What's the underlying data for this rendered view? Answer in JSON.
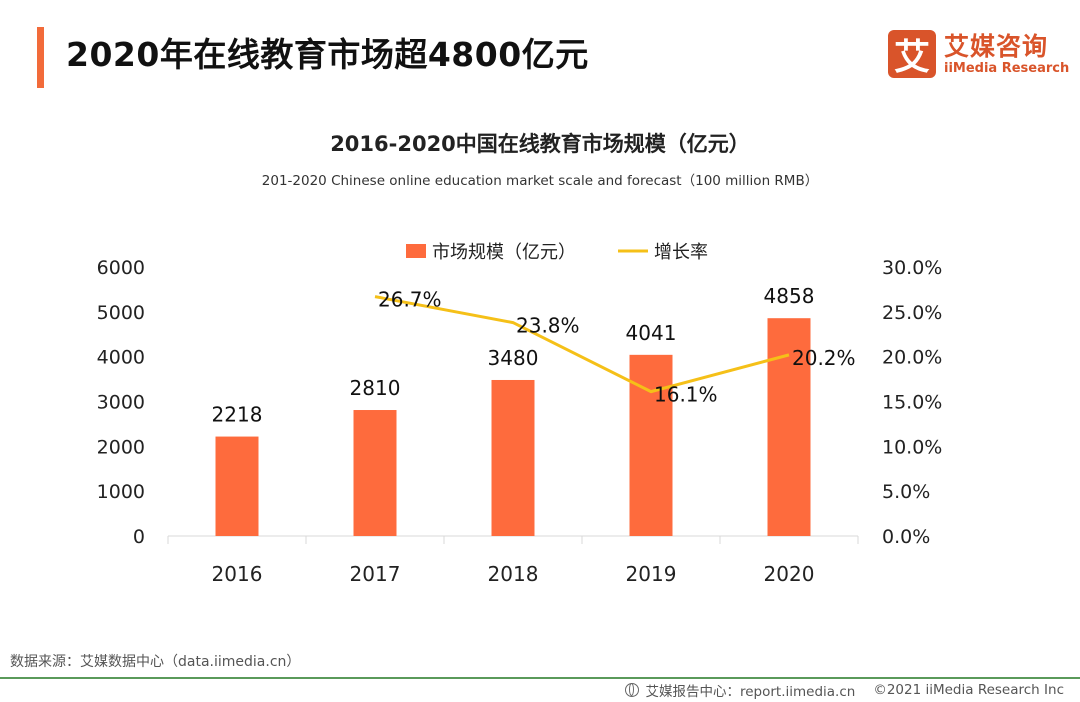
{
  "header": {
    "title": "2020年在线教育市场超4800亿元",
    "logo": {
      "mark": "艾",
      "name_cn": "艾媒咨询",
      "name_en": "iiMedia Research"
    }
  },
  "chart_data": {
    "type": "bar",
    "title": "2016-2020中国在线教育市场规模（亿元）",
    "subtitle": "201-2020 Chinese online education market scale and forecast（100 million RMB）",
    "categories": [
      "2016",
      "2017",
      "2018",
      "2019",
      "2020"
    ],
    "series": [
      {
        "name": "市场规模（亿元）",
        "type": "bar",
        "axis": "left",
        "color": "#fe6b3d",
        "values": [
          2218,
          2810,
          3480,
          4041,
          4858
        ],
        "labels": [
          "2218",
          "2810",
          "3480",
          "4041",
          "4858"
        ]
      },
      {
        "name": "增长率",
        "type": "line",
        "axis": "right",
        "color": "#f5c018",
        "values": [
          null,
          26.7,
          23.8,
          16.1,
          20.2
        ],
        "labels": [
          "",
          "26.7%",
          "23.8%",
          "16.1%",
          "20.2%"
        ]
      }
    ],
    "left_axis": {
      "ylim": [
        0,
        6000
      ],
      "ticks": [
        "0",
        "1000",
        "2000",
        "3000",
        "4000",
        "5000",
        "6000"
      ]
    },
    "right_axis": {
      "ylim": [
        0,
        30
      ],
      "ticks": [
        "0.0%",
        "5.0%",
        "10.0%",
        "15.0%",
        "20.0%",
        "25.0%",
        "30.0%"
      ]
    },
    "legend": {
      "position": "top-center",
      "items": [
        "市场规模（亿元）",
        "增长率"
      ]
    },
    "grid": false
  },
  "footer": {
    "source": "数据来源：艾媒数据中心（data.iimedia.cn）",
    "report_center": "艾媒报告中心：report.iimedia.cn",
    "copyright": "©2021 iiMedia Research  Inc"
  }
}
